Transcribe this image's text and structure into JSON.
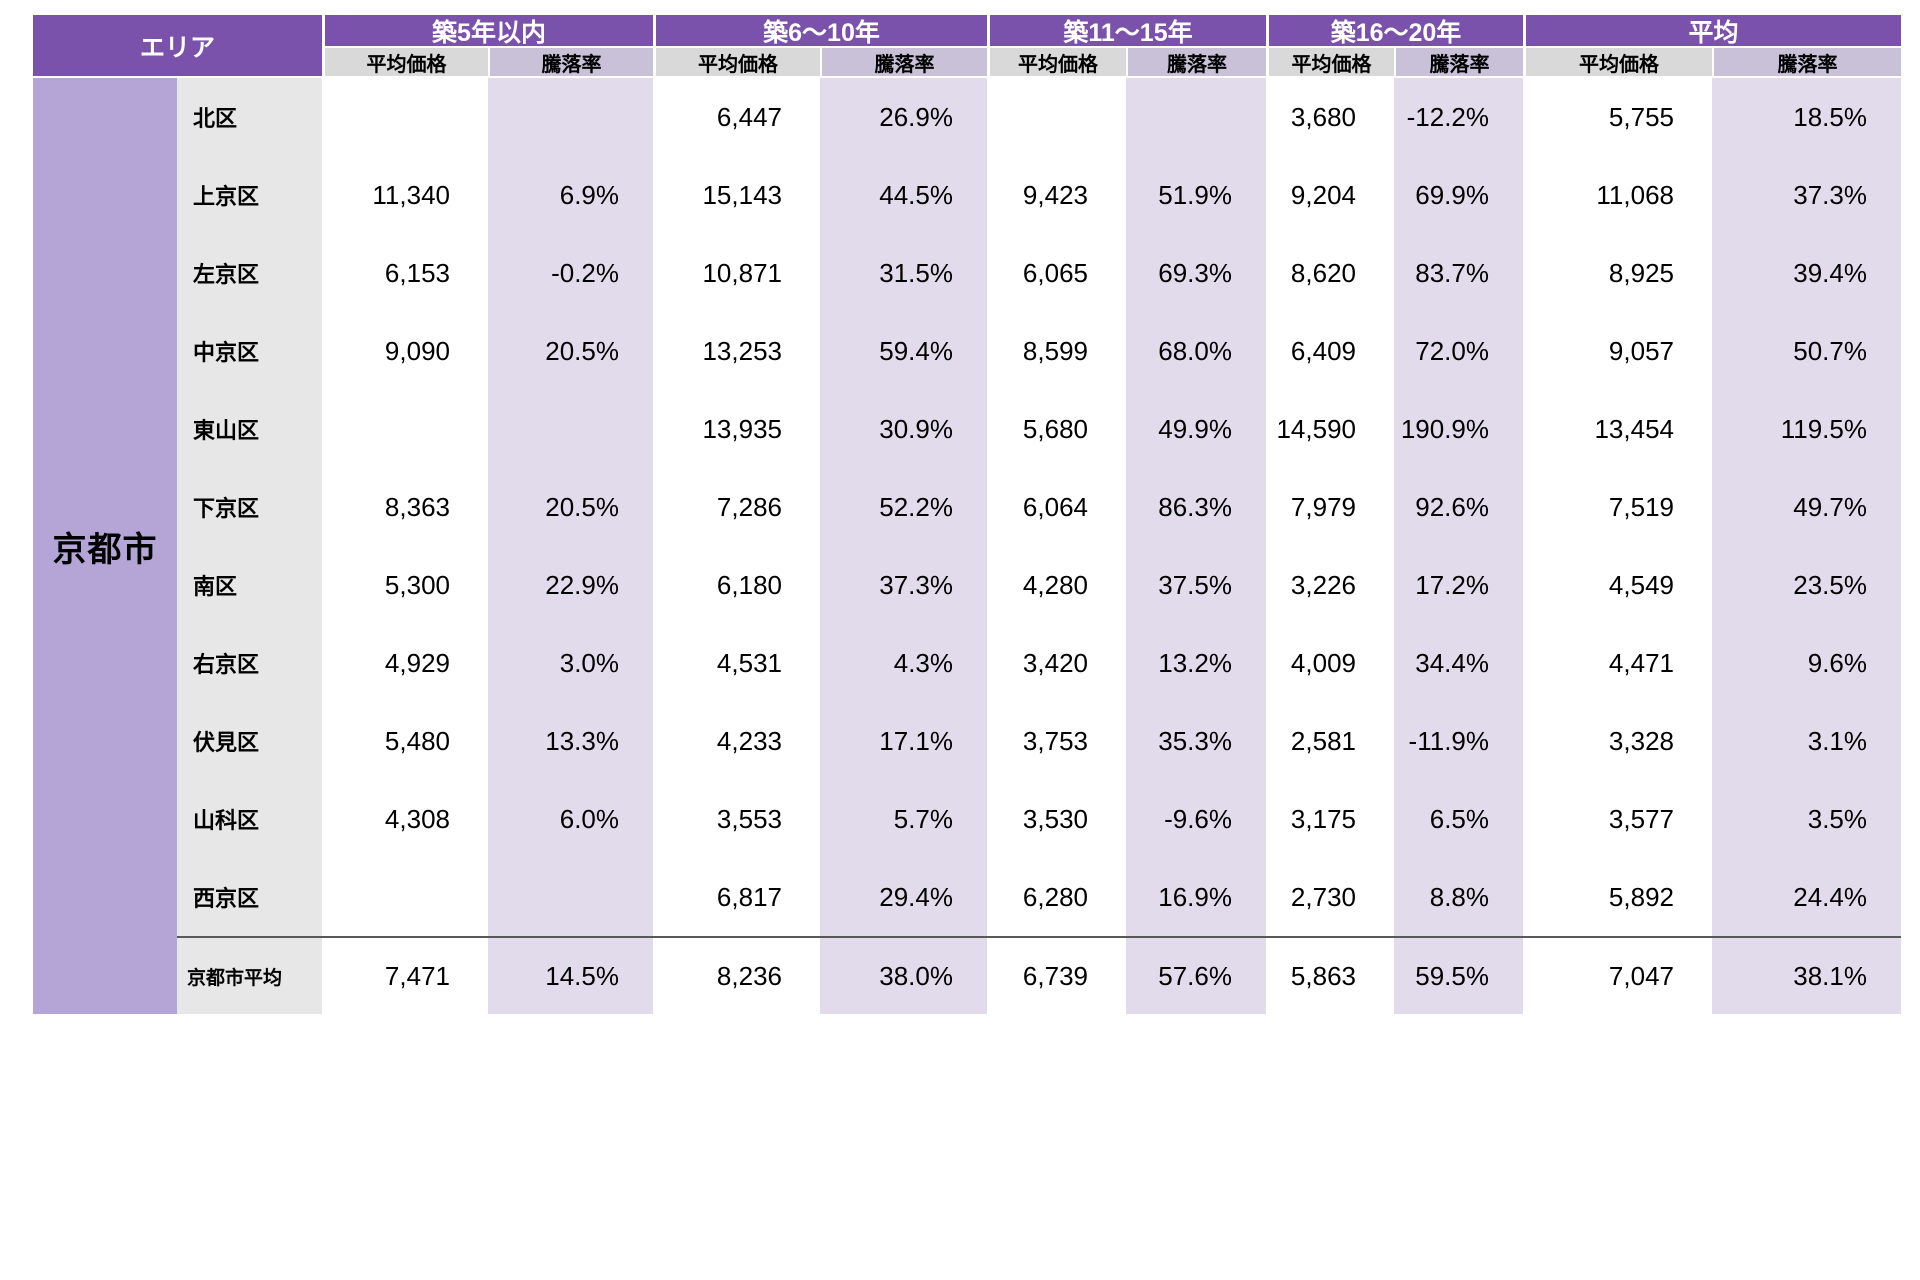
{
  "colors": {
    "header_purple": "#7A52AB",
    "price_header_bg": "#D9D9D9",
    "rate_header_bg": "#C8C1D8",
    "rate_cell_bg": "#E1DBEC",
    "city_col_bg": "#B5A4D6",
    "ward_col_bg": "#E7E7E7",
    "summary_divider": "#595959",
    "header_text": "#FFFFFF",
    "body_text": "#000000"
  },
  "table": {
    "area_header": "エリア",
    "city": "京都市",
    "col_groups": [
      {
        "label": "築5年以内",
        "sub": [
          "平均価格",
          "騰落率"
        ]
      },
      {
        "label": "築6〜10年",
        "sub": [
          "平均価格",
          "騰落率"
        ]
      },
      {
        "label": "築11〜15年",
        "sub": [
          "平均価格",
          "騰落率"
        ]
      },
      {
        "label": "築16〜20年",
        "sub": [
          "平均価格",
          "騰落率"
        ]
      },
      {
        "label": "平均",
        "sub": [
          "平均価格",
          "騰落率"
        ]
      }
    ],
    "rows": [
      {
        "ward": "北区",
        "cells": [
          "",
          "",
          "6,447",
          "26.9%",
          "",
          "",
          "3,680",
          "-12.2%",
          "5,755",
          "18.5%"
        ]
      },
      {
        "ward": "上京区",
        "cells": [
          "11,340",
          "6.9%",
          "15,143",
          "44.5%",
          "9,423",
          "51.9%",
          "9,204",
          "69.9%",
          "11,068",
          "37.3%"
        ]
      },
      {
        "ward": "左京区",
        "cells": [
          "6,153",
          "-0.2%",
          "10,871",
          "31.5%",
          "6,065",
          "69.3%",
          "8,620",
          "83.7%",
          "8,925",
          "39.4%"
        ]
      },
      {
        "ward": "中京区",
        "cells": [
          "9,090",
          "20.5%",
          "13,253",
          "59.4%",
          "8,599",
          "68.0%",
          "6,409",
          "72.0%",
          "9,057",
          "50.7%"
        ]
      },
      {
        "ward": "東山区",
        "cells": [
          "",
          "",
          "13,935",
          "30.9%",
          "5,680",
          "49.9%",
          "14,590",
          "190.9%",
          "13,454",
          "119.5%"
        ]
      },
      {
        "ward": "下京区",
        "cells": [
          "8,363",
          "20.5%",
          "7,286",
          "52.2%",
          "6,064",
          "86.3%",
          "7,979",
          "92.6%",
          "7,519",
          "49.7%"
        ]
      },
      {
        "ward": "南区",
        "cells": [
          "5,300",
          "22.9%",
          "6,180",
          "37.3%",
          "4,280",
          "37.5%",
          "3,226",
          "17.2%",
          "4,549",
          "23.5%"
        ]
      },
      {
        "ward": "右京区",
        "cells": [
          "4,929",
          "3.0%",
          "4,531",
          "4.3%",
          "3,420",
          "13.2%",
          "4,009",
          "34.4%",
          "4,471",
          "9.6%"
        ]
      },
      {
        "ward": "伏見区",
        "cells": [
          "5,480",
          "13.3%",
          "4,233",
          "17.1%",
          "3,753",
          "35.3%",
          "2,581",
          "-11.9%",
          "3,328",
          "3.1%"
        ]
      },
      {
        "ward": "山科区",
        "cells": [
          "4,308",
          "6.0%",
          "3,553",
          "5.7%",
          "3,530",
          "-9.6%",
          "3,175",
          "6.5%",
          "3,577",
          "3.5%"
        ]
      },
      {
        "ward": "西京区",
        "cells": [
          "",
          "",
          "6,817",
          "29.4%",
          "6,280",
          "16.9%",
          "2,730",
          "8.8%",
          "5,892",
          "24.4%"
        ]
      }
    ],
    "summary_row": {
      "ward": "京都市平均",
      "cells": [
        "7,471",
        "14.5%",
        "8,236",
        "38.0%",
        "6,739",
        "57.6%",
        "5,863",
        "59.5%",
        "7,047",
        "38.1%"
      ]
    }
  },
  "chart_data": {
    "type": "table",
    "row_header": "エリア",
    "area": "京都市",
    "column_groups": [
      "築5年以内",
      "築6〜10年",
      "築11〜15年",
      "築16〜20年",
      "平均"
    ],
    "metrics_per_group": [
      "平均価格",
      "騰落率(%)"
    ],
    "rows": [
      {
        "ward": "北区",
        "values": [
          null,
          null,
          6447,
          26.9,
          null,
          null,
          3680,
          -12.2,
          5755,
          18.5
        ]
      },
      {
        "ward": "上京区",
        "values": [
          11340,
          6.9,
          15143,
          44.5,
          9423,
          51.9,
          9204,
          69.9,
          11068,
          37.3
        ]
      },
      {
        "ward": "左京区",
        "values": [
          6153,
          -0.2,
          10871,
          31.5,
          6065,
          69.3,
          8620,
          83.7,
          8925,
          39.4
        ]
      },
      {
        "ward": "中京区",
        "values": [
          9090,
          20.5,
          13253,
          59.4,
          8599,
          68.0,
          6409,
          72.0,
          9057,
          50.7
        ]
      },
      {
        "ward": "東山区",
        "values": [
          null,
          null,
          13935,
          30.9,
          5680,
          49.9,
          14590,
          190.9,
          13454,
          119.5
        ]
      },
      {
        "ward": "下京区",
        "values": [
          8363,
          20.5,
          7286,
          52.2,
          6064,
          86.3,
          7979,
          92.6,
          7519,
          49.7
        ]
      },
      {
        "ward": "南区",
        "values": [
          5300,
          22.9,
          6180,
          37.3,
          4280,
          37.5,
          3226,
          17.2,
          4549,
          23.5
        ]
      },
      {
        "ward": "右京区",
        "values": [
          4929,
          3.0,
          4531,
          4.3,
          3420,
          13.2,
          4009,
          34.4,
          4471,
          9.6
        ]
      },
      {
        "ward": "伏見区",
        "values": [
          5480,
          13.3,
          4233,
          17.1,
          3753,
          35.3,
          2581,
          -11.9,
          3328,
          3.1
        ]
      },
      {
        "ward": "山科区",
        "values": [
          4308,
          6.0,
          3553,
          5.7,
          3530,
          -9.6,
          3175,
          6.5,
          3577,
          3.5
        ]
      },
      {
        "ward": "西京区",
        "values": [
          null,
          null,
          6817,
          29.4,
          6280,
          16.9,
          2730,
          8.8,
          5892,
          24.4
        ]
      },
      {
        "ward": "京都市平均",
        "values": [
          7471,
          14.5,
          8236,
          38.0,
          6739,
          57.6,
          5863,
          59.5,
          7047,
          38.1
        ]
      }
    ]
  }
}
